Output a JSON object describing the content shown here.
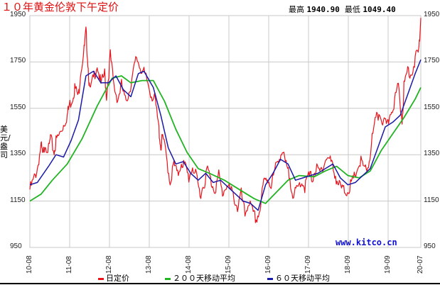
{
  "header": {
    "title": "１０年黄金伦敦下午定价",
    "high_label": "最高",
    "high_value": "1940.90",
    "low_label": "最低",
    "low_value": "1049.40"
  },
  "watermark": "www.kitco.cn",
  "y_unit": "美元/盎司",
  "colors": {
    "daily": "#e8141c",
    "ma200": "#22b422",
    "ma60": "#1a1aa8",
    "grid": "#c8c8c8"
  },
  "legend": [
    {
      "label": "日定价",
      "color": "#e8141c"
    },
    {
      "label": "２００天移动平均",
      "color": "#22b422"
    },
    {
      "label": "６０天移动平均",
      "color": "#1a1aa8"
    }
  ],
  "chart_data": {
    "type": "line",
    "title": "10年黄金伦敦下午定价",
    "ylabel": "美元/盎司",
    "xlabel": "",
    "ylim": [
      950,
      1950
    ],
    "yticks": [
      950,
      1150,
      1350,
      1550,
      1750,
      1950
    ],
    "xticks": [
      "10-08",
      "11-08",
      "12-08",
      "13-08",
      "14-08",
      "15-09",
      "16-09",
      "17-09",
      "18-09",
      "19-09",
      "20-07"
    ],
    "grid": true,
    "legend_position": "bottom",
    "annotations": {
      "max": 1940.9,
      "min": 1049.4,
      "source": "www.kitco.cn"
    },
    "x_unit": "years since 2010-08",
    "series": [
      {
        "name": "日定价",
        "points": [
          [
            0,
            1200
          ],
          [
            0.1,
            1240
          ],
          [
            0.2,
            1290
          ],
          [
            0.3,
            1390
          ],
          [
            0.35,
            1340
          ],
          [
            0.4,
            1400
          ],
          [
            0.5,
            1370
          ],
          [
            0.55,
            1420
          ],
          [
            0.65,
            1360
          ],
          [
            0.7,
            1410
          ],
          [
            0.8,
            1440
          ],
          [
            0.9,
            1480
          ],
          [
            1.0,
            1520
          ],
          [
            1.05,
            1560
          ],
          [
            1.15,
            1600
          ],
          [
            1.2,
            1640
          ],
          [
            1.3,
            1600
          ],
          [
            1.35,
            1700
          ],
          [
            1.45,
            1800
          ],
          [
            1.5,
            1880
          ],
          [
            1.55,
            1750
          ],
          [
            1.6,
            1620
          ],
          [
            1.7,
            1680
          ],
          [
            1.8,
            1740
          ],
          [
            1.9,
            1650
          ],
          [
            2.0,
            1700
          ],
          [
            2.05,
            1600
          ],
          [
            2.15,
            1780
          ],
          [
            2.25,
            1640
          ],
          [
            2.35,
            1590
          ],
          [
            2.45,
            1650
          ],
          [
            2.55,
            1580
          ],
          [
            2.65,
            1620
          ],
          [
            2.75,
            1690
          ],
          [
            2.85,
            1770
          ],
          [
            2.95,
            1730
          ],
          [
            3.05,
            1700
          ],
          [
            3.15,
            1660
          ],
          [
            3.25,
            1610
          ],
          [
            3.35,
            1580
          ],
          [
            3.45,
            1460
          ],
          [
            3.5,
            1380
          ],
          [
            3.55,
            1430
          ],
          [
            3.65,
            1340
          ],
          [
            3.75,
            1230
          ],
          [
            3.85,
            1310
          ],
          [
            3.95,
            1260
          ],
          [
            4.05,
            1320
          ],
          [
            4.15,
            1300
          ],
          [
            4.25,
            1250
          ],
          [
            4.35,
            1300
          ],
          [
            4.45,
            1250
          ],
          [
            4.55,
            1180
          ],
          [
            4.65,
            1220
          ],
          [
            4.75,
            1290
          ],
          [
            4.85,
            1230
          ],
          [
            4.95,
            1200
          ],
          [
            5.05,
            1260
          ],
          [
            5.15,
            1180
          ],
          [
            5.25,
            1220
          ],
          [
            5.35,
            1200
          ],
          [
            5.45,
            1170
          ],
          [
            5.55,
            1120
          ],
          [
            5.65,
            1180
          ],
          [
            5.75,
            1090
          ],
          [
            5.85,
            1150
          ],
          [
            5.95,
            1100
          ],
          [
            6.05,
            1070
          ],
          [
            6.15,
            1110
          ],
          [
            6.25,
            1230
          ],
          [
            6.35,
            1250
          ],
          [
            6.45,
            1220
          ],
          [
            6.55,
            1280
          ],
          [
            6.65,
            1340
          ],
          [
            6.75,
            1360
          ],
          [
            6.85,
            1300
          ],
          [
            6.95,
            1250
          ],
          [
            7.05,
            1170
          ],
          [
            7.15,
            1200
          ],
          [
            7.25,
            1240
          ],
          [
            7.35,
            1210
          ],
          [
            7.45,
            1260
          ],
          [
            7.55,
            1250
          ],
          [
            7.65,
            1290
          ],
          [
            7.75,
            1270
          ],
          [
            7.85,
            1310
          ],
          [
            7.95,
            1340
          ],
          [
            8.05,
            1320
          ],
          [
            8.15,
            1270
          ],
          [
            8.25,
            1220
          ],
          [
            8.35,
            1200
          ],
          [
            8.45,
            1190
          ],
          [
            8.55,
            1210
          ],
          [
            8.65,
            1240
          ],
          [
            8.75,
            1290
          ],
          [
            8.85,
            1320
          ],
          [
            8.95,
            1280
          ],
          [
            9.05,
            1300
          ],
          [
            9.15,
            1420
          ],
          [
            9.25,
            1500
          ],
          [
            9.35,
            1530
          ],
          [
            9.45,
            1490
          ],
          [
            9.55,
            1470
          ],
          [
            9.65,
            1540
          ],
          [
            9.75,
            1580
          ],
          [
            9.85,
            1650
          ],
          [
            9.95,
            1500
          ],
          [
            10.0,
            1640
          ],
          [
            10.1,
            1720
          ],
          [
            10.2,
            1700
          ],
          [
            10.3,
            1760
          ],
          [
            10.4,
            1800
          ],
          [
            10.45,
            1940
          ]
        ]
      },
      {
        "name": "２００天移动平均",
        "points": [
          [
            0,
            1150
          ],
          [
            0.3,
            1180
          ],
          [
            0.6,
            1240
          ],
          [
            1.0,
            1310
          ],
          [
            1.4,
            1420
          ],
          [
            1.8,
            1560
          ],
          [
            2.2,
            1680
          ],
          [
            2.45,
            1690
          ],
          [
            2.7,
            1660
          ],
          [
            3.0,
            1670
          ],
          [
            3.3,
            1670
          ],
          [
            3.6,
            1580
          ],
          [
            3.9,
            1460
          ],
          [
            4.2,
            1360
          ],
          [
            4.5,
            1290
          ],
          [
            4.8,
            1270
          ],
          [
            5.2,
            1240
          ],
          [
            5.6,
            1200
          ],
          [
            6.0,
            1160
          ],
          [
            6.3,
            1140
          ],
          [
            6.6,
            1190
          ],
          [
            6.9,
            1240
          ],
          [
            7.2,
            1260
          ],
          [
            7.6,
            1255
          ],
          [
            7.9,
            1280
          ],
          [
            8.2,
            1300
          ],
          [
            8.5,
            1260
          ],
          [
            8.8,
            1250
          ],
          [
            9.1,
            1280
          ],
          [
            9.4,
            1370
          ],
          [
            9.7,
            1440
          ],
          [
            10.0,
            1510
          ],
          [
            10.3,
            1590
          ],
          [
            10.45,
            1640
          ]
        ]
      },
      {
        "name": "６０天移动平均",
        "points": [
          [
            0,
            1220
          ],
          [
            0.2,
            1230
          ],
          [
            0.5,
            1300
          ],
          [
            0.7,
            1350
          ],
          [
            0.9,
            1340
          ],
          [
            1.1,
            1410
          ],
          [
            1.3,
            1500
          ],
          [
            1.5,
            1690
          ],
          [
            1.7,
            1710
          ],
          [
            1.9,
            1660
          ],
          [
            2.1,
            1660
          ],
          [
            2.3,
            1690
          ],
          [
            2.5,
            1630
          ],
          [
            2.7,
            1600
          ],
          [
            2.9,
            1700
          ],
          [
            3.05,
            1710
          ],
          [
            3.3,
            1640
          ],
          [
            3.5,
            1520
          ],
          [
            3.7,
            1380
          ],
          [
            3.9,
            1310
          ],
          [
            4.1,
            1320
          ],
          [
            4.3,
            1270
          ],
          [
            4.5,
            1240
          ],
          [
            4.7,
            1270
          ],
          [
            4.9,
            1230
          ],
          [
            5.1,
            1240
          ],
          [
            5.3,
            1210
          ],
          [
            5.5,
            1180
          ],
          [
            5.7,
            1150
          ],
          [
            5.9,
            1140
          ],
          [
            6.1,
            1110
          ],
          [
            6.3,
            1220
          ],
          [
            6.5,
            1270
          ],
          [
            6.7,
            1330
          ],
          [
            6.9,
            1310
          ],
          [
            7.1,
            1240
          ],
          [
            7.3,
            1250
          ],
          [
            7.5,
            1260
          ],
          [
            7.7,
            1270
          ],
          [
            7.9,
            1290
          ],
          [
            8.1,
            1310
          ],
          [
            8.3,
            1250
          ],
          [
            8.5,
            1220
          ],
          [
            8.7,
            1230
          ],
          [
            8.9,
            1260
          ],
          [
            9.1,
            1290
          ],
          [
            9.3,
            1380
          ],
          [
            9.5,
            1470
          ],
          [
            9.7,
            1490
          ],
          [
            9.9,
            1520
          ],
          [
            10.1,
            1610
          ],
          [
            10.3,
            1700
          ],
          [
            10.45,
            1760
          ]
        ]
      }
    ]
  }
}
